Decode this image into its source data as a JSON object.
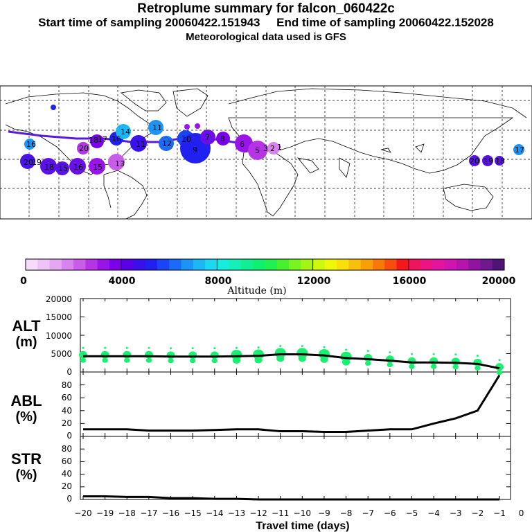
{
  "header": {
    "title": "Retroplume summary for falcon_060422c",
    "line2_start": "Start time of sampling 20060422.151943",
    "line2_end": "End time of sampling 20060422.152028",
    "line3": "Meteorological data used is GFS"
  },
  "map": {
    "description_labels": [
      "20",
      "19",
      "18",
      "15",
      "16",
      "15",
      "13",
      "14",
      "17",
      "16",
      "18",
      "20",
      "19",
      "11",
      "12",
      "10",
      "7",
      "9",
      "8",
      "6",
      "5",
      "4",
      "3",
      "2",
      "1"
    ],
    "trajectory_color": "#5a1bd8"
  },
  "colorbar": {
    "ticks": [
      "0",
      "4000",
      "8000",
      "12000",
      "16000",
      "20000"
    ],
    "title": "Altitude (m)",
    "colors": [
      "#f6dcfa",
      "#eec4f6",
      "#e4a8f2",
      "#d984ee",
      "#c95ce8",
      "#b434e6",
      "#9a14ea",
      "#7a00ea",
      "#5a00e6",
      "#3a10ea",
      "#2020f0",
      "#1a44f6",
      "#1a6cf6",
      "#1c94f6",
      "#1cb8f6",
      "#1cd8f0",
      "#18ecdc",
      "#14f0b8",
      "#10f090",
      "#10f070",
      "#20f050",
      "#48f030",
      "#78f420",
      "#a4f414",
      "#cef80c",
      "#f0f808",
      "#f8e008",
      "#f8c008",
      "#f8a008",
      "#f87808",
      "#f84c10",
      "#f41818",
      "#f0145c",
      "#ec1484",
      "#e414a0",
      "#d014b0",
      "#b414b0",
      "#9014a0",
      "#701890",
      "#501478"
    ]
  },
  "chart_data": [
    {
      "id": "ALT",
      "type": "line",
      "panel_label": "ALT",
      "unit_label": "(m)",
      "x": [
        -20,
        -19,
        -18,
        -17,
        -16,
        -15,
        -14,
        -13,
        -12,
        -11,
        -10,
        -9,
        -8,
        -7,
        -6,
        -5,
        -4,
        -3,
        -2,
        -1
      ],
      "y": [
        4300,
        4300,
        4300,
        4300,
        4200,
        4200,
        4200,
        4300,
        4400,
        4800,
        4800,
        4500,
        3800,
        3500,
        3100,
        2600,
        2600,
        2500,
        2200,
        1000
      ],
      "y_ticks": [
        "0",
        "5000",
        "10000",
        "15000",
        "20000"
      ],
      "ylim": [
        0,
        20000
      ],
      "xlim": [
        -20,
        0
      ],
      "scatter_color": "#18f070"
    },
    {
      "id": "ABL",
      "type": "line",
      "panel_label": "ABL",
      "unit_label": "(%)",
      "x": [
        -20,
        -19,
        -18,
        -17,
        -16,
        -15,
        -14,
        -13,
        -12,
        -11,
        -10,
        -9,
        -8,
        -7,
        -6,
        -5,
        -4,
        -3,
        -2,
        -1
      ],
      "y": [
        11,
        11,
        11,
        9,
        9,
        9,
        10,
        11,
        11,
        8,
        8,
        7,
        7,
        9,
        11,
        11,
        20,
        28,
        40,
        95
      ],
      "y_ticks": [
        "0",
        "20",
        "40",
        "60",
        "80"
      ],
      "ylim": [
        0,
        100
      ],
      "xlim": [
        -20,
        0
      ]
    },
    {
      "id": "STR",
      "type": "line",
      "panel_label": "STR",
      "unit_label": "(%)",
      "x": [
        -20,
        -19,
        -18,
        -17,
        -16,
        -15,
        -14,
        -13,
        -12,
        -11,
        -10,
        -9,
        -8,
        -7,
        -6,
        -5,
        -4,
        -3,
        -2,
        -1
      ],
      "y": [
        5,
        5,
        4,
        4,
        2,
        2,
        1,
        1,
        0,
        0,
        0,
        0,
        0,
        0,
        0,
        0,
        0,
        0,
        0,
        0
      ],
      "y_ticks": [
        "0",
        "20",
        "40",
        "60",
        "80"
      ],
      "ylim": [
        0,
        100
      ],
      "xlim": [
        -20,
        0
      ]
    }
  ],
  "x_axis": {
    "ticks": [
      "−20",
      "−19",
      "−18",
      "−17",
      "−16",
      "−15",
      "−14",
      "−13",
      "−12",
      "−11",
      "−10",
      "−9",
      "−8",
      "−7",
      "−6",
      "−5",
      "−4",
      "−3",
      "−2",
      "−1",
      "0"
    ],
    "label": "Travel time (days)"
  }
}
